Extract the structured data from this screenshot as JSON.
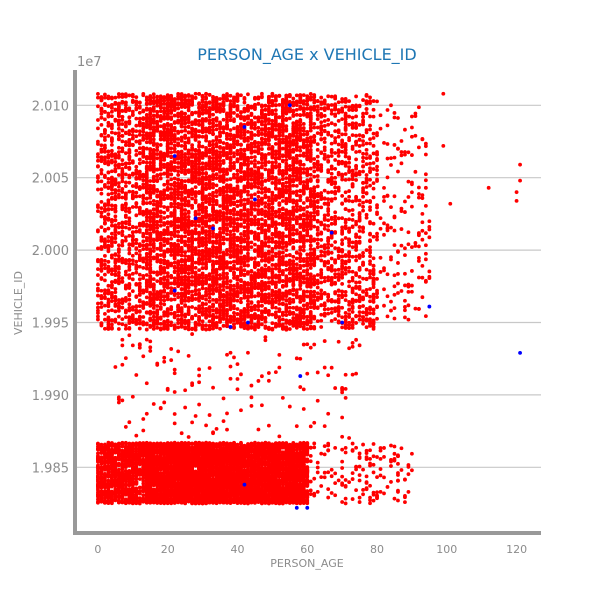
{
  "chart_data": {
    "type": "scatter",
    "title": "PERSON_AGE x VEHICLE_ID",
    "xlabel": "PERSON_AGE",
    "ylabel": "VEHICLE_ID",
    "y_offset_label": "1e7",
    "xlim": [
      -6,
      127
    ],
    "ylim": [
      19.806,
      20.123
    ],
    "x_ticks": [
      0,
      20,
      40,
      60,
      80,
      100,
      120
    ],
    "x_tick_labels": [
      "0",
      "20",
      "40",
      "60",
      "80",
      "100",
      "120"
    ],
    "y_ticks": [
      19.85,
      19.9,
      19.95,
      20.0,
      20.05,
      20.1
    ],
    "y_tick_labels": [
      "1.985",
      "1.990",
      "1.995",
      "2.000",
      "2.005",
      "2.010"
    ],
    "grid": "horizontal",
    "colors": {
      "primary": "#ff0000",
      "secondary": "#0000ff",
      "title": "#1f77b4",
      "axis": "#999999"
    },
    "series": [
      {
        "color": "#ff0000",
        "clusters": [
          {
            "x_range": [
              0,
              14
            ],
            "y_range": [
              19.945,
              20.108
            ],
            "density": "medium"
          },
          {
            "x_range": [
              14,
              62
            ],
            "y_range": [
              19.945,
              20.108
            ],
            "density": "dense"
          },
          {
            "x_range": [
              62,
              80
            ],
            "y_range": [
              19.945,
              20.108
            ],
            "density": "medium"
          },
          {
            "x_range": [
              80,
              95
            ],
            "y_range": [
              19.95,
              20.1
            ],
            "density": "sparse"
          },
          {
            "x_range": [
              0,
              14
            ],
            "y_range": [
              19.825,
              19.867
            ],
            "density": "medium"
          },
          {
            "x_range": [
              14,
              60
            ],
            "y_range": [
              19.825,
              19.867
            ],
            "density": "dense"
          },
          {
            "x_range": [
              60,
              90
            ],
            "y_range": [
              19.825,
              19.867
            ],
            "density": "sparse"
          },
          {
            "x_range": [
              5,
              75
            ],
            "y_range": [
              19.87,
              19.945
            ],
            "density": "very-sparse"
          }
        ],
        "points": [
          {
            "x": 99,
            "y": 20.108
          },
          {
            "x": 99,
            "y": 20.072
          },
          {
            "x": 101,
            "y": 20.032
          },
          {
            "x": 112,
            "y": 20.043
          },
          {
            "x": 120,
            "y": 20.034
          },
          {
            "x": 120,
            "y": 20.04
          },
          {
            "x": 121,
            "y": 20.048
          },
          {
            "x": 121,
            "y": 20.059
          },
          {
            "x": 90,
            "y": 20.03
          },
          {
            "x": 93,
            "y": 20.025
          },
          {
            "x": 85,
            "y": 19.975
          },
          {
            "x": 88,
            "y": 19.965
          }
        ]
      },
      {
        "color": "#0000ff",
        "points": [
          {
            "x": 22,
            "y": 20.065
          },
          {
            "x": 42,
            "y": 20.085
          },
          {
            "x": 55,
            "y": 20.1
          },
          {
            "x": 22,
            "y": 19.972
          },
          {
            "x": 38,
            "y": 19.947
          },
          {
            "x": 43,
            "y": 19.95
          },
          {
            "x": 58,
            "y": 19.913
          },
          {
            "x": 70,
            "y": 19.95
          },
          {
            "x": 95,
            "y": 19.961
          },
          {
            "x": 121,
            "y": 19.929
          },
          {
            "x": 42,
            "y": 19.838
          },
          {
            "x": 57,
            "y": 19.822
          },
          {
            "x": 60,
            "y": 19.822
          },
          {
            "x": 67,
            "y": 20.012
          },
          {
            "x": 33,
            "y": 20.015
          },
          {
            "x": 45,
            "y": 20.035
          },
          {
            "x": 28,
            "y": 20.022
          }
        ]
      }
    ]
  }
}
